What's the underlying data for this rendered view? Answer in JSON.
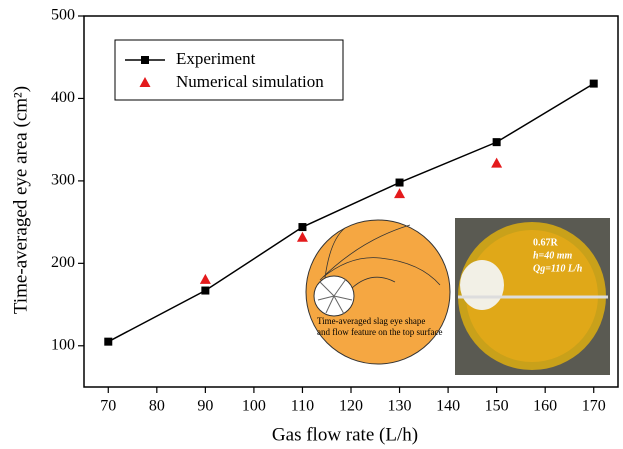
{
  "chart_data": {
    "type": "line",
    "xlabel": "Gas flow rate (L/h)",
    "ylabel": "Time-averaged eye area (cm²)",
    "x": [
      70,
      90,
      110,
      130,
      150,
      170
    ],
    "series": [
      {
        "name": "Experiment",
        "color": "#000000",
        "marker": "square",
        "line": true,
        "values": [
          105,
          167,
          244,
          298,
          347,
          418
        ]
      },
      {
        "name": "Numerical simulation",
        "color": "#e41a1c",
        "marker": "triangle",
        "line": false,
        "values": [
          null,
          180,
          231,
          284,
          321,
          null
        ]
      }
    ],
    "xlim": [
      65,
      175
    ],
    "xticks": [
      70,
      80,
      90,
      100,
      110,
      120,
      130,
      140,
      150,
      160,
      170
    ],
    "ylim": [
      50,
      500
    ],
    "yticks": [
      100,
      200,
      300,
      400,
      500
    ],
    "annotations": [
      "Time-averaged slag eye shape",
      "and flow feature on the top surface",
      "0.67R",
      "h=40 mm",
      "Qg=110 L/h"
    ]
  }
}
